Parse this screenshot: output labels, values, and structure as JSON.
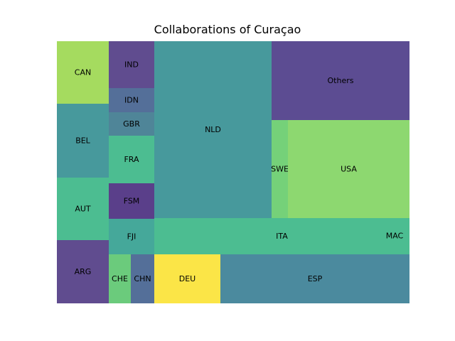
{
  "chart_data": {
    "type": "treemap",
    "title": "Collaborations of Curaçao",
    "cells": [
      {
        "label": "CAN",
        "color": "#a5db5f"
      },
      {
        "label": "BEL",
        "color": "#47999c"
      },
      {
        "label": "AUT",
        "color": "#4cbd91"
      },
      {
        "label": "ARG",
        "color": "#604c8f"
      },
      {
        "label": "IND",
        "color": "#604c8f"
      },
      {
        "label": "IDN",
        "color": "#546f99"
      },
      {
        "label": "GBR",
        "color": "#4f8598"
      },
      {
        "label": "FRA",
        "color": "#4cbd91"
      },
      {
        "label": "FSM",
        "color": "#5a3f8a"
      },
      {
        "label": "FJI",
        "color": "#45a89a"
      },
      {
        "label": "CHE",
        "color": "#6bcb7c"
      },
      {
        "label": "CHN",
        "color": "#546f99"
      },
      {
        "label": "NLD",
        "color": "#47999c"
      },
      {
        "label": "Others",
        "color": "#5c4c92"
      },
      {
        "label": "SWE",
        "color": "#75d179"
      },
      {
        "label": "USA",
        "color": "#8dd870"
      },
      {
        "label": "ITA",
        "color": "#4cbd91"
      },
      {
        "label": "MAC",
        "color": "#4cbd91"
      },
      {
        "label": "DEU",
        "color": "#fbe547"
      },
      {
        "label": "ESP",
        "color": "#4b8a9e"
      }
    ]
  }
}
